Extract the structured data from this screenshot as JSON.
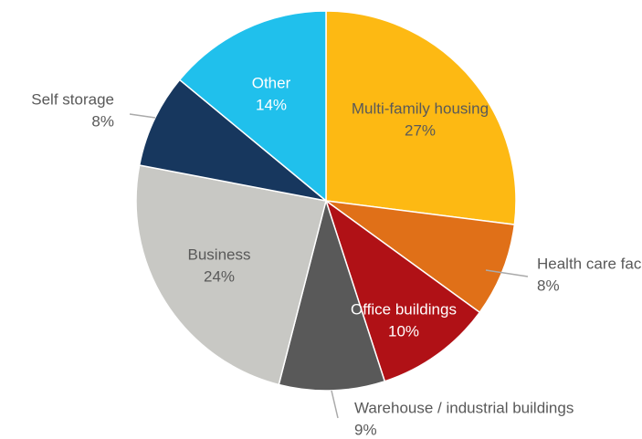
{
  "chart_data": {
    "type": "pie",
    "categories": [
      "Multi-family housing",
      "Health care facilities",
      "Office buildings",
      "Warehouse / industrial buildings",
      "Business",
      "Self storage",
      "Other"
    ],
    "values": [
      27,
      8,
      10,
      9,
      24,
      8,
      14
    ],
    "value_labels": [
      "27%",
      "8%",
      "10%",
      "9%",
      "24%",
      "8%",
      "14%"
    ],
    "colors": [
      "#fdb913",
      "#e07018",
      "#b01116",
      "#595959",
      "#c8c8c4",
      "#17375e",
      "#20c0ec"
    ]
  }
}
